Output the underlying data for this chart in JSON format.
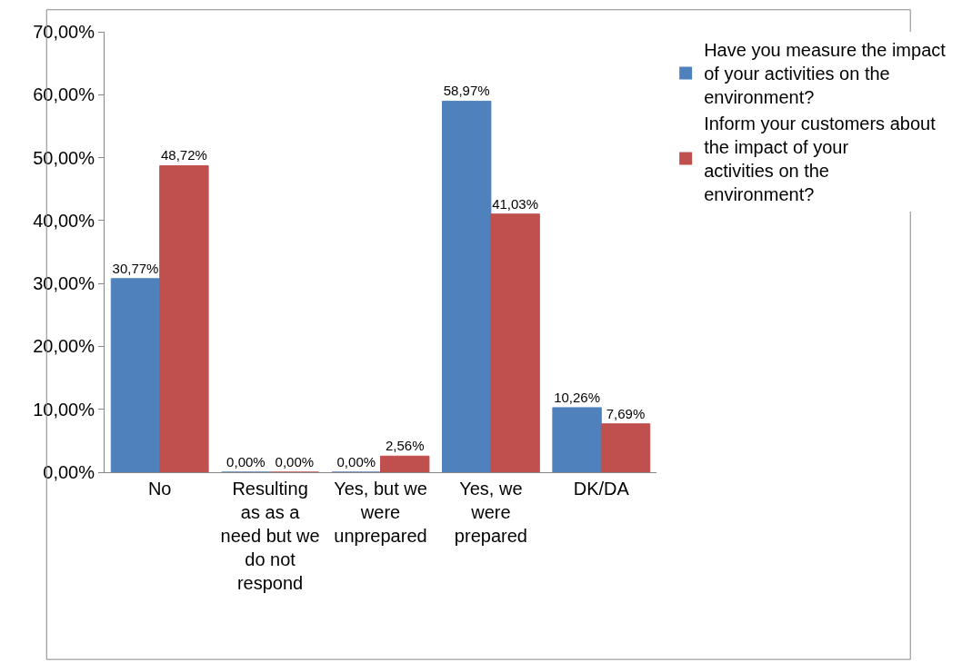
{
  "chart_data": {
    "type": "bar",
    "categories": [
      "No",
      "Resulting as as a need but we do not respond",
      "Yes, but we were unprepared",
      "Yes, we were prepared",
      "DK/DA"
    ],
    "series": [
      {
        "name": "Have you measure the impact of your activities on the environment?",
        "color": "#4f81bd",
        "values": [
          30.77,
          0,
          0,
          58.97,
          10.26
        ],
        "value_labels": [
          "30,77%",
          "0,00%",
          "0,00%",
          "58,97%",
          "10,26%"
        ]
      },
      {
        "name": "Inform your customers about the impact of your activities on the environment?",
        "color": "#c0504d",
        "values": [
          48.72,
          0,
          2.56,
          41.03,
          7.69
        ],
        "value_labels": [
          "48,72%",
          "0,00%",
          "2,56%",
          "41,03%",
          "7,69%"
        ]
      }
    ],
    "ylim": [
      0,
      70
    ],
    "yticks": [
      {
        "value": 0,
        "label": "0,00%"
      },
      {
        "value": 10,
        "label": "10,00%"
      },
      {
        "value": 20,
        "label": "20,00%"
      },
      {
        "value": 30,
        "label": "30,00%"
      },
      {
        "value": 40,
        "label": "40,00%"
      },
      {
        "value": 50,
        "label": "50,00%"
      },
      {
        "value": 60,
        "label": "60,00%"
      },
      {
        "value": 70,
        "label": "70,00%"
      }
    ],
    "grid": false,
    "legend": "top right"
  }
}
